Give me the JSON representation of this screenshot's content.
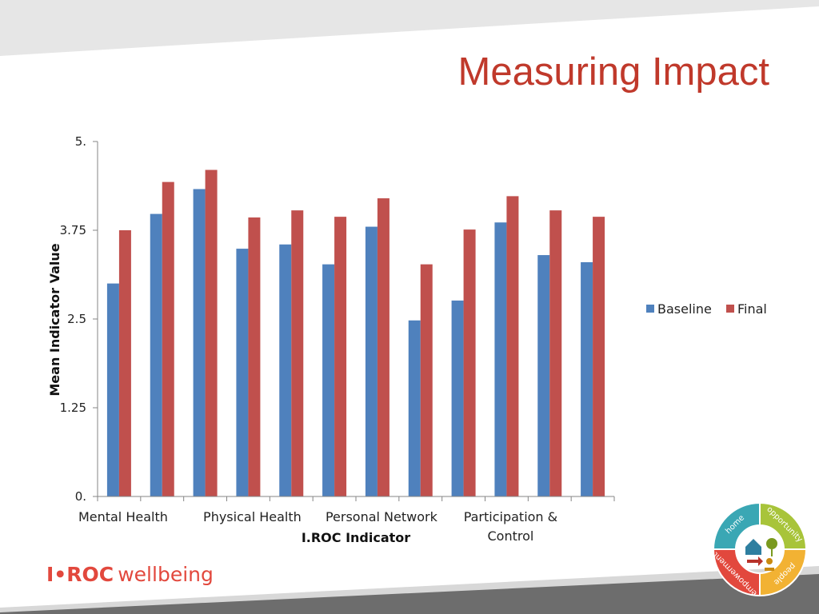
{
  "slide": {
    "title": "Measuring Impact",
    "colors": {
      "title": "#c0392b",
      "band": "#e6e6e6",
      "footer_band": "#6d6d6d"
    }
  },
  "brand": {
    "logo_text_bold": "I•ROC",
    "logo_text": "wellbeing",
    "wheel_words": [
      "home",
      "opportunity",
      "empowerment",
      "people"
    ],
    "wheel_colors": [
      "#3aa7b4",
      "#a8c43a",
      "#e2483d",
      "#f2b233"
    ]
  },
  "chart_data": {
    "type": "bar",
    "xlabel": "I.ROC Indicator",
    "ylabel": "Mean Indicator Value",
    "ylim": [
      0,
      5
    ],
    "yticks": [
      "0.",
      "1.25",
      "2.5",
      "3.75",
      "5."
    ],
    "ytick_values": [
      0,
      1.25,
      2.5,
      3.75,
      5
    ],
    "grid": false,
    "legend_position": "right",
    "category_labels": [
      {
        "text": "Mental Health",
        "index": 0
      },
      {
        "text": "Physical Health",
        "index": 3
      },
      {
        "text": "Personal Network",
        "index": 6
      },
      {
        "text": "Participation &\nControl",
        "index": 9
      }
    ],
    "groups": 12,
    "series": [
      {
        "name": "Baseline",
        "color": "#4f81bd",
        "values": [
          3.0,
          3.98,
          4.33,
          3.49,
          3.55,
          3.27,
          3.8,
          2.48,
          2.76,
          3.86,
          3.4,
          3.3
        ]
      },
      {
        "name": "Final",
        "color": "#c0504d",
        "values": [
          3.75,
          4.43,
          4.6,
          3.93,
          4.03,
          3.94,
          4.2,
          3.27,
          3.76,
          4.23,
          4.03,
          3.94
        ]
      }
    ]
  }
}
